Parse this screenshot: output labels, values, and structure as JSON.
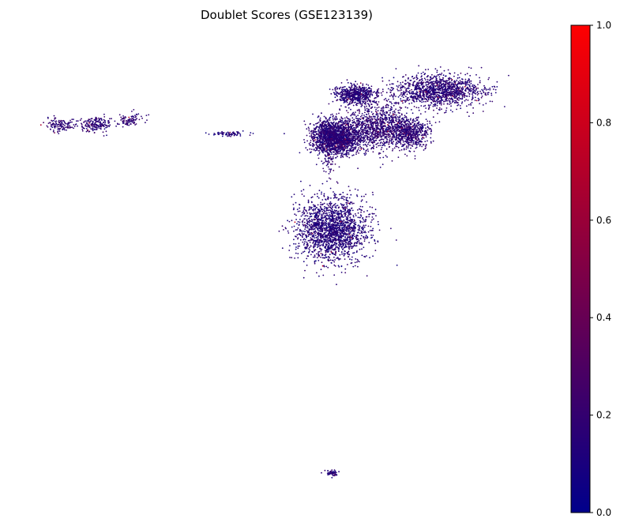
{
  "chart_data": {
    "type": "scatter",
    "title": "Doublet Scores (GSE123139)",
    "xlabel": "",
    "ylabel": "",
    "axes_visible": false,
    "point_color_scale": {
      "min": 0.0,
      "max": 1.0,
      "colors": [
        "#00008b",
        "#ff0000"
      ],
      "ticks": [
        0.0,
        0.2,
        0.4,
        0.6,
        0.8,
        1.0
      ],
      "tick_labels": [
        "0.0",
        "0.2",
        "0.4",
        "0.6",
        "0.8",
        "1.0"
      ]
    },
    "colorbar_location": "right",
    "clusters": [
      {
        "center": [
          0.45,
          0.83
        ],
        "spread": [
          0.16,
          0.06
        ],
        "count": 1300,
        "score_mean": 0.16
      },
      {
        "center": [
          0.16,
          0.815
        ],
        "spread": [
          0.07,
          0.035
        ],
        "count": 600,
        "score_mean": 0.15
      },
      {
        "center": [
          0.08,
          0.655
        ],
        "spread": [
          0.07,
          0.07
        ],
        "count": 1250,
        "score_mean": 0.15
      },
      {
        "center": [
          0.235,
          0.69
        ],
        "spread": [
          0.11,
          0.09
        ],
        "count": 1100,
        "score_mean": 0.17
      },
      {
        "center": [
          0.11,
          0.64
        ],
        "spread": [
          0.09,
          0.05
        ],
        "count": 600,
        "score_mean": 0.16
      },
      {
        "center": [
          0.35,
          0.67
        ],
        "spread": [
          0.07,
          0.06
        ],
        "count": 550,
        "score_mean": 0.16
      },
      {
        "center": [
          0.08,
          0.3
        ],
        "spread": [
          0.12,
          0.12
        ],
        "count": 1900,
        "score_mean": 0.14
      },
      {
        "center": [
          -0.75,
          0.7
        ],
        "spread": [
          0.055,
          0.03
        ],
        "count": 180,
        "score_mean": 0.16
      },
      {
        "center": [
          -0.87,
          0.7
        ],
        "spread": [
          0.05,
          0.025
        ],
        "count": 120,
        "score_mean": 0.18
      },
      {
        "center": [
          -0.63,
          0.72
        ],
        "spread": [
          0.05,
          0.025
        ],
        "count": 90,
        "score_mean": 0.17
      },
      {
        "center": [
          -0.28,
          0.665
        ],
        "spread": [
          0.07,
          0.008
        ],
        "count": 70,
        "score_mean": 0.12
      },
      {
        "center": [
          0.08,
          -0.63
        ],
        "spread": [
          0.022,
          0.012
        ],
        "count": 60,
        "score_mean": 0.15
      },
      {
        "center": [
          0.07,
          0.56
        ],
        "spread": [
          0.015,
          0.07
        ],
        "count": 40,
        "score_mean": 0.16
      }
    ],
    "xlim": [
      -1.0,
      0.85
    ],
    "ylim": [
      -0.7,
      1.02
    ]
  }
}
